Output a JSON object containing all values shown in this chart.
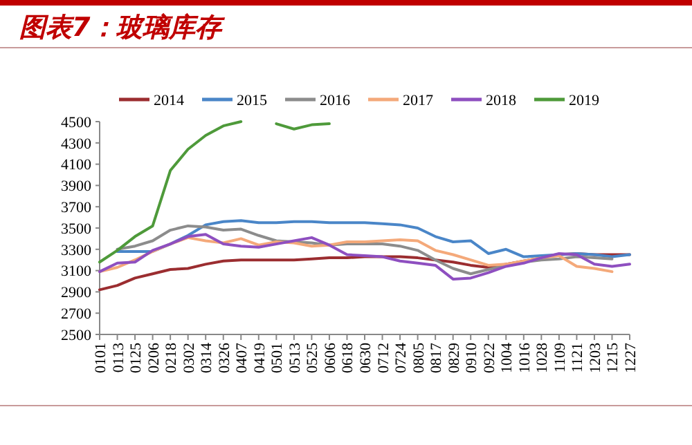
{
  "chart_data": {
    "type": "line",
    "title": "图表7：玻璃库存",
    "categories": [
      "0101",
      "0113",
      "0125",
      "0206",
      "0218",
      "0302",
      "0314",
      "0326",
      "0407",
      "0419",
      "0501",
      "0513",
      "0525",
      "0606",
      "0618",
      "0630",
      "0712",
      "0724",
      "0805",
      "0817",
      "0829",
      "0910",
      "0922",
      "1004",
      "1016",
      "1028",
      "1109",
      "1121",
      "1203",
      "1215",
      "1227"
    ],
    "series": [
      {
        "name": "2014",
        "color": "#9b2d30",
        "values": [
          2920,
          2960,
          3030,
          3070,
          3110,
          3120,
          3160,
          3190,
          3200,
          3200,
          3200,
          3200,
          3210,
          3220,
          3220,
          3230,
          3230,
          3230,
          3220,
          3200,
          3180,
          3150,
          3130,
          3160,
          3190,
          3220,
          3250,
          3260,
          3250,
          3250,
          3250
        ]
      },
      {
        "name": "2015",
        "color": "#4a86c8",
        "values": [
          null,
          3280,
          3280,
          3280,
          3350,
          3430,
          3530,
          3560,
          3570,
          3550,
          3550,
          3560,
          3560,
          3550,
          3550,
          3550,
          3540,
          3530,
          3500,
          3420,
          3370,
          3380,
          3260,
          3300,
          3230,
          3240,
          3250,
          3260,
          3250,
          3230,
          3250
        ]
      },
      {
        "name": "2016",
        "color": "#8c8c8c",
        "values": [
          null,
          3300,
          3330,
          3380,
          3480,
          3520,
          3510,
          3480,
          3490,
          3430,
          3380,
          3370,
          3360,
          3340,
          3350,
          3350,
          3350,
          3330,
          3290,
          3200,
          3120,
          3070,
          3110,
          3150,
          3180,
          3200,
          3210,
          3230,
          3220,
          3210,
          null
        ]
      },
      {
        "name": "2017",
        "color": "#f4a97a",
        "values": [
          3090,
          3130,
          3200,
          3280,
          3350,
          3410,
          3380,
          3360,
          3400,
          3340,
          3370,
          3360,
          3330,
          3340,
          3370,
          3370,
          3380,
          3390,
          3380,
          3290,
          3250,
          3200,
          3150,
          3160,
          3190,
          3220,
          3240,
          3140,
          3120,
          3090,
          null
        ]
      },
      {
        "name": "2018",
        "color": "#8e4fc0",
        "values": [
          3090,
          3170,
          3180,
          3290,
          3350,
          3420,
          3440,
          3350,
          3330,
          3320,
          3350,
          3380,
          3410,
          3340,
          3250,
          3240,
          3230,
          3190,
          3170,
          3150,
          3020,
          3030,
          3080,
          3140,
          3170,
          3220,
          3260,
          3250,
          3160,
          3140,
          3160
        ]
      },
      {
        "name": "2019",
        "color": "#4e9a3a",
        "values": [
          3180,
          3290,
          3420,
          3520,
          4040,
          4240,
          4370,
          4460,
          4500,
          null,
          4480,
          4430,
          4470,
          4480,
          null,
          null,
          null,
          null,
          null,
          null,
          null,
          null,
          null,
          null,
          null,
          null,
          null,
          null,
          null,
          null,
          null
        ]
      }
    ],
    "ylim": [
      2500,
      4500
    ],
    "yticks": [
      2500,
      2700,
      2900,
      3100,
      3300,
      3500,
      3700,
      3900,
      4100,
      4300,
      4500
    ],
    "legend": "top",
    "grid": false,
    "marker": "none",
    "line_style": "solid"
  }
}
